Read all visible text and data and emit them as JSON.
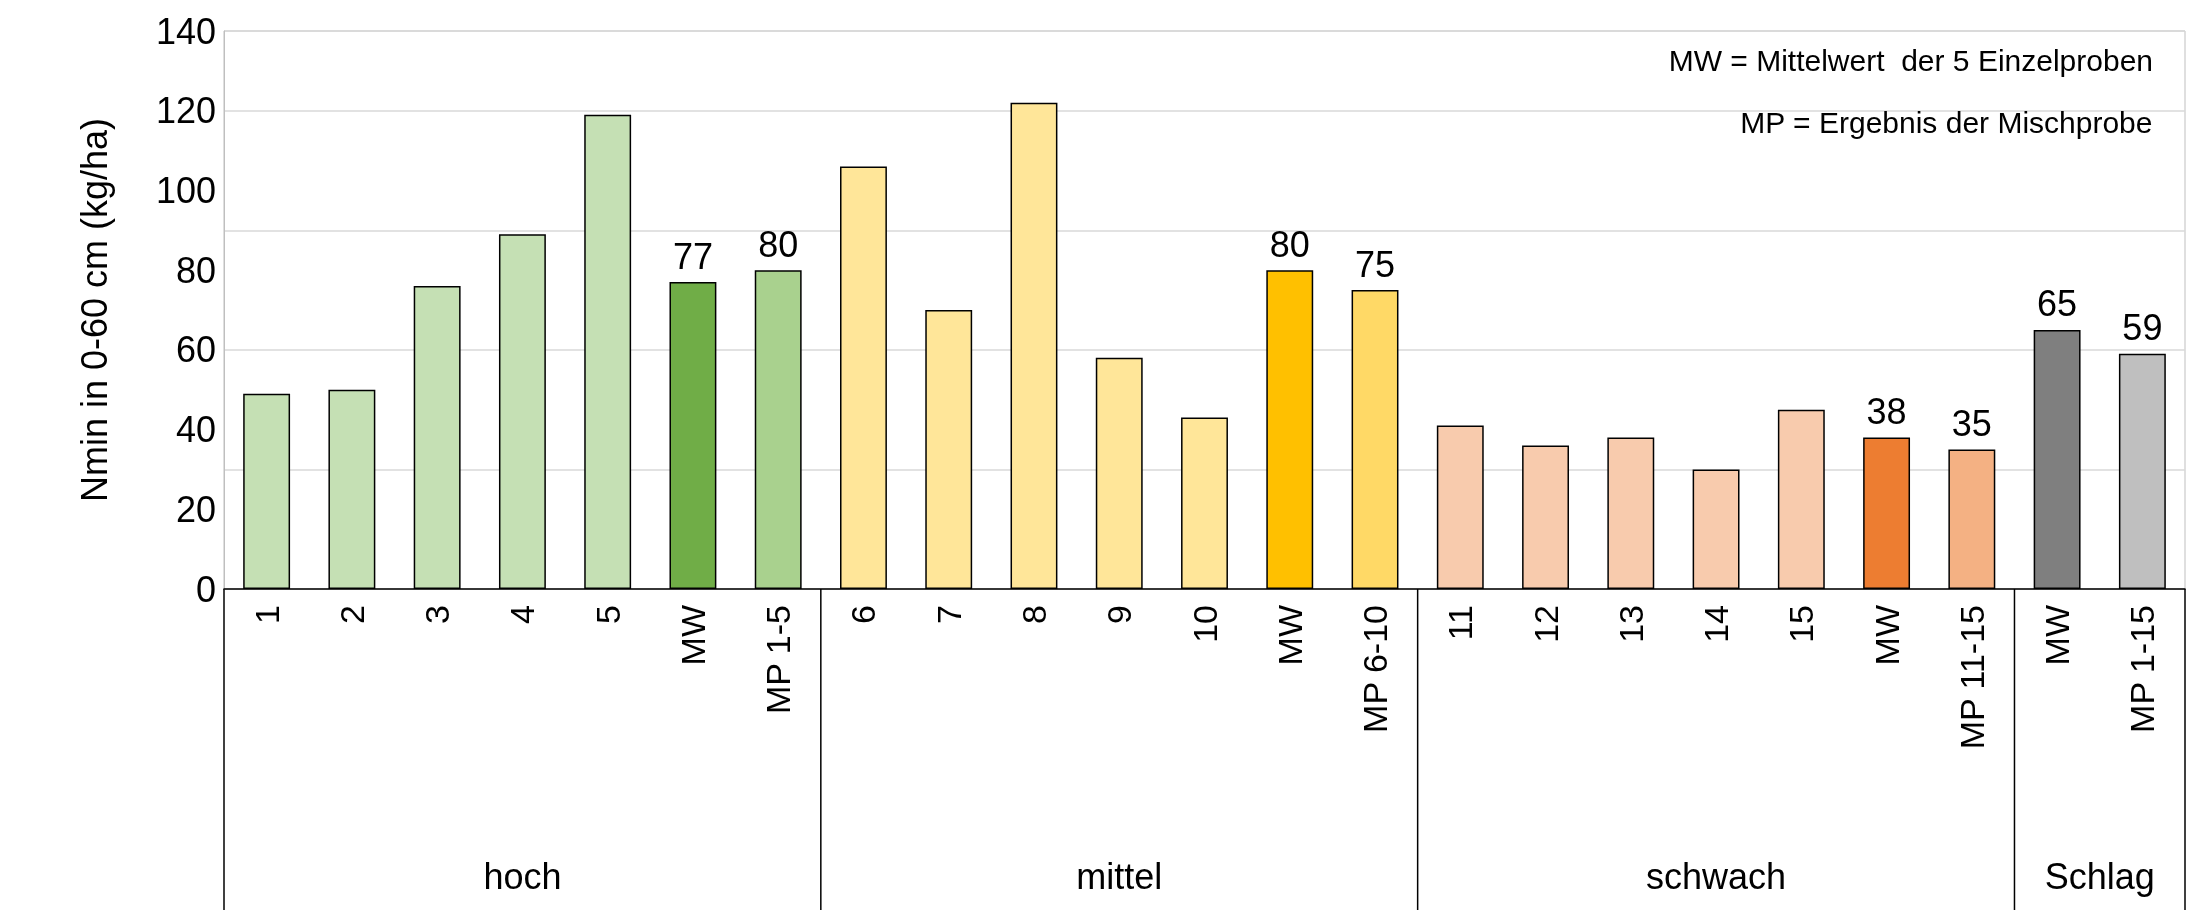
{
  "chart_data": {
    "type": "bar",
    "ylabel": "Nmin in 0-60 cm (kg/ha)",
    "ylim": [
      0,
      140
    ],
    "yticks": [
      0,
      20,
      40,
      60,
      80,
      100,
      120,
      140
    ],
    "grid": "y",
    "categories": [
      "1",
      "2",
      "3",
      "4",
      "5",
      "MW",
      "MP 1-5",
      "6",
      "7",
      "8",
      "9",
      "10",
      "MW",
      "MP 6-10",
      "11",
      "12",
      "13",
      "14",
      "15",
      "MW",
      "MP 11-15",
      "MW",
      "MP 1-15"
    ],
    "series": [
      {
        "values": [
          49,
          50,
          76,
          89,
          119,
          77,
          80,
          null,
          null,
          null,
          null,
          null,
          null,
          null,
          null,
          null,
          null,
          null,
          null,
          null,
          null,
          null,
          null
        ],
        "colors": [
          "#c5e0b4",
          "#c5e0b4",
          "#c5e0b4",
          "#c5e0b4",
          "#c5e0b4",
          "#70ad47",
          "#a9d18e",
          null,
          null,
          null,
          null,
          null,
          null,
          null,
          null,
          null,
          null,
          null,
          null,
          null,
          null,
          null,
          null
        ],
        "value_labels": [
          null,
          null,
          null,
          null,
          null,
          "77",
          "80",
          null,
          null,
          null,
          null,
          null,
          null,
          null,
          null,
          null,
          null,
          null,
          null,
          null,
          null,
          null,
          null
        ]
      },
      {
        "values": [
          null,
          null,
          null,
          null,
          null,
          null,
          null,
          106,
          70,
          122,
          58,
          43,
          80,
          75,
          null,
          null,
          null,
          null,
          null,
          null,
          null,
          null,
          null
        ],
        "colors": [
          null,
          null,
          null,
          null,
          null,
          null,
          null,
          "#ffe699",
          "#ffe699",
          "#ffe699",
          "#ffe699",
          "#ffe699",
          "#ffc000",
          "#ffd966",
          null,
          null,
          null,
          null,
          null,
          null,
          null,
          null,
          null
        ],
        "value_labels": [
          null,
          null,
          null,
          null,
          null,
          null,
          null,
          null,
          null,
          null,
          null,
          null,
          "80",
          "75",
          null,
          null,
          null,
          null,
          null,
          null,
          null,
          null,
          null
        ]
      },
      {
        "values": [
          null,
          null,
          null,
          null,
          null,
          null,
          null,
          null,
          null,
          null,
          null,
          null,
          null,
          null,
          41,
          36,
          38,
          30,
          45,
          38,
          35,
          null,
          null
        ],
        "colors": [
          null,
          null,
          null,
          null,
          null,
          null,
          null,
          null,
          null,
          null,
          null,
          null,
          null,
          null,
          "#f8cbad",
          "#f8cbad",
          "#f8cbad",
          "#f8cbad",
          "#f8cbad",
          "#ed7d31",
          "#f4b183",
          null,
          null
        ],
        "value_labels": [
          null,
          null,
          null,
          null,
          null,
          null,
          null,
          null,
          null,
          null,
          null,
          null,
          null,
          null,
          null,
          null,
          null,
          null,
          null,
          "38",
          "35",
          null,
          null
        ]
      },
      {
        "values": [
          null,
          null,
          null,
          null,
          null,
          null,
          null,
          null,
          null,
          null,
          null,
          null,
          null,
          null,
          null,
          null,
          null,
          null,
          null,
          null,
          null,
          65,
          59
        ],
        "colors": [
          null,
          null,
          null,
          null,
          null,
          null,
          null,
          null,
          null,
          null,
          null,
          null,
          null,
          null,
          null,
          null,
          null,
          null,
          null,
          null,
          null,
          "#7f7f7f",
          "#bfbfbf"
        ],
        "value_labels": [
          null,
          null,
          null,
          null,
          null,
          null,
          null,
          null,
          null,
          null,
          null,
          null,
          null,
          null,
          null,
          null,
          null,
          null,
          null,
          null,
          null,
          "65",
          "59"
        ]
      }
    ],
    "annotations": [
      "MW = Mittelwert  der 5 Einzelproben",
      "MP = Ergebnis der Mischprobe",
      {
        "text": "hoch"
      },
      {
        "text": "mittel"
      },
      {
        "text": "schwach"
      },
      {
        "text": "Schlag"
      }
    ]
  }
}
